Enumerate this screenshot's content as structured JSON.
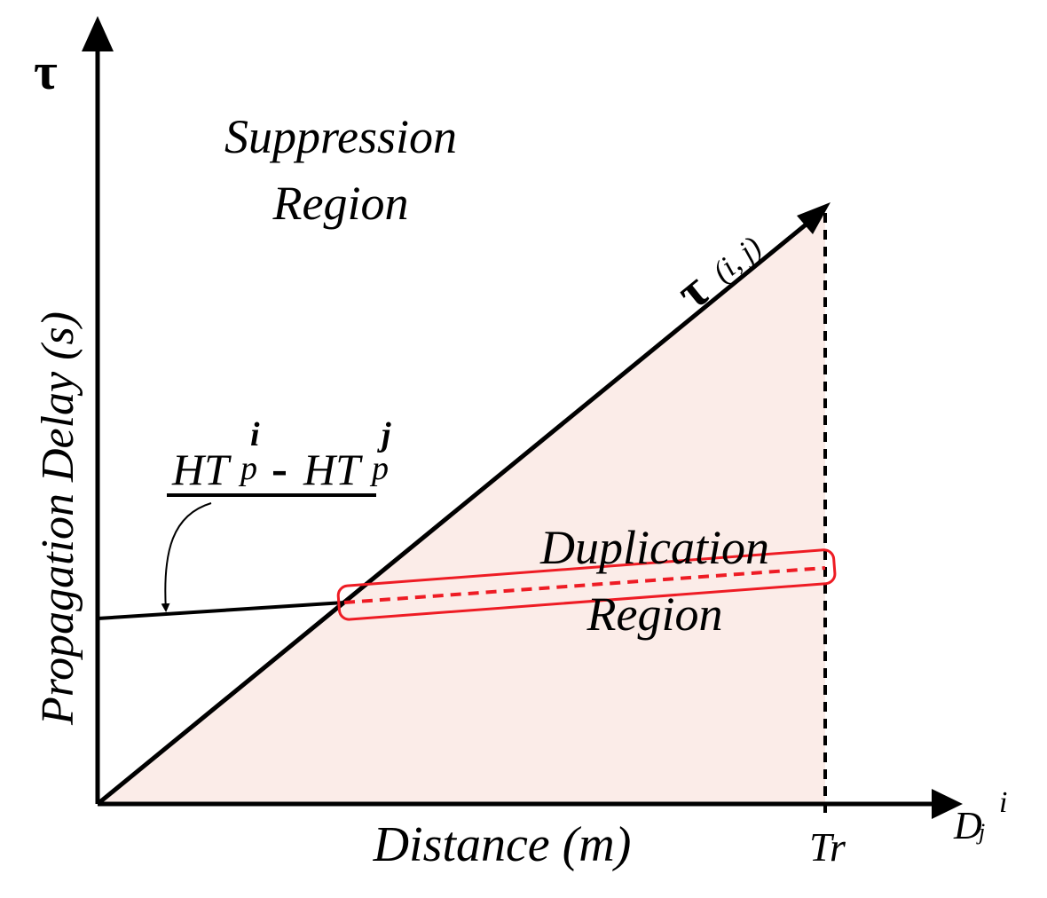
{
  "diagram": {
    "y_axis_symbol": "τ",
    "y_axis_label": "Propagation Delay (s)",
    "x_axis_label": "Distance (m)",
    "x_axis_symbol_base": "D",
    "x_axis_symbol_sub": "j",
    "x_axis_symbol_sup": "i",
    "tr_label": "Tr",
    "suppression_line1": "Suppression",
    "suppression_line2": "Region",
    "duplication_line1": "Duplication",
    "duplication_line2": "Region",
    "tau_line_symbol": "τ",
    "tau_line_sub": "(i, j)",
    "ht_term_base": "HT",
    "ht_sub": "p",
    "ht_sup_left": "i",
    "ht_sup_right": "j",
    "ht_minus": "-",
    "colors": {
      "duplication_fill": "#fbece8",
      "highlight": "#ee1c24",
      "ink": "#000000"
    }
  }
}
